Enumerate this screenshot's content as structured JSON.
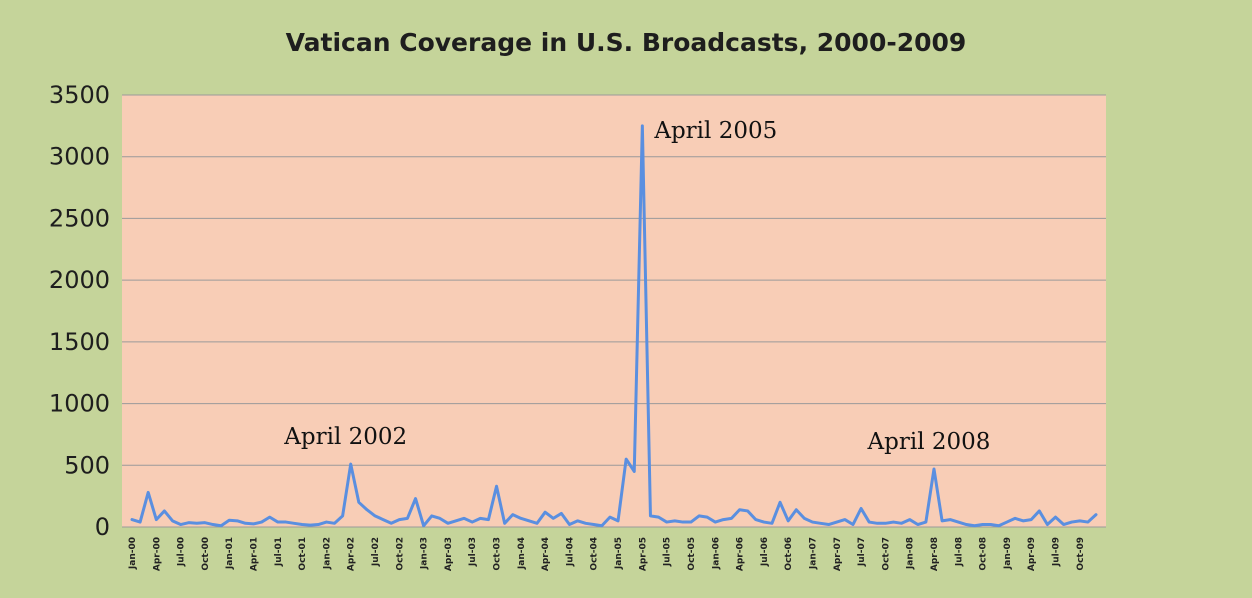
{
  "chart_data": {
    "type": "line",
    "title": "Vatican Coverage in U.S. Broadcasts, 2000-2009",
    "xlabel": "",
    "ylabel": "",
    "ylim": [
      0,
      3500
    ],
    "y_ticks": [
      0,
      500,
      1000,
      1500,
      2000,
      2500,
      3000,
      3500
    ],
    "grid": "horizontal",
    "legend": "none",
    "colors": {
      "line": "#5a8fe0",
      "plot_bg": "#f8cdb6",
      "outer_bg": "#c5d49a",
      "grid": "#9a9a9a"
    },
    "x": [
      "Jan-00",
      "Feb-00",
      "Mar-00",
      "Apr-00",
      "May-00",
      "Jun-00",
      "Jul-00",
      "Aug-00",
      "Sep-00",
      "Oct-00",
      "Nov-00",
      "Dec-00",
      "Jan-01",
      "Feb-01",
      "Mar-01",
      "Apr-01",
      "May-01",
      "Jun-01",
      "Jul-01",
      "Aug-01",
      "Sep-01",
      "Oct-01",
      "Nov-01",
      "Dec-01",
      "Jan-02",
      "Feb-02",
      "Mar-02",
      "Apr-02",
      "May-02",
      "Jun-02",
      "Jul-02",
      "Aug-02",
      "Sep-02",
      "Oct-02",
      "Nov-02",
      "Dec-02",
      "Jan-03",
      "Feb-03",
      "Mar-03",
      "Apr-03",
      "May-03",
      "Jun-03",
      "Jul-03",
      "Aug-03",
      "Sep-03",
      "Oct-03",
      "Nov-03",
      "Dec-03",
      "Jan-04",
      "Feb-04",
      "Mar-04",
      "Apr-04",
      "May-04",
      "Jun-04",
      "Jul-04",
      "Aug-04",
      "Sep-04",
      "Oct-04",
      "Nov-04",
      "Dec-04",
      "Jan-05",
      "Feb-05",
      "Mar-05",
      "Apr-05",
      "May-05",
      "Jun-05",
      "Jul-05",
      "Aug-05",
      "Sep-05",
      "Oct-05",
      "Nov-05",
      "Dec-05",
      "Jan-06",
      "Feb-06",
      "Mar-06",
      "Apr-06",
      "May-06",
      "Jun-06",
      "Jul-06",
      "Aug-06",
      "Sep-06",
      "Oct-06",
      "Nov-06",
      "Dec-06",
      "Jan-07",
      "Feb-07",
      "Mar-07",
      "Apr-07",
      "May-07",
      "Jun-07",
      "Jul-07",
      "Aug-07",
      "Sep-07",
      "Oct-07",
      "Nov-07",
      "Dec-07",
      "Jan-08",
      "Feb-08",
      "Mar-08",
      "Apr-08",
      "May-08",
      "Jun-08",
      "Jul-08",
      "Aug-08",
      "Sep-08",
      "Oct-08",
      "Nov-08",
      "Dec-08",
      "Jan-09",
      "Feb-09",
      "Mar-09",
      "Apr-09",
      "May-09",
      "Jun-09",
      "Jul-09",
      "Aug-09",
      "Sep-09",
      "Oct-09",
      "Nov-09",
      "Dec-09"
    ],
    "x_tick_labels": [
      "Jan-00",
      "Apr-00",
      "Jul-00",
      "Oct-00",
      "Jan-01",
      "Apr-01",
      "Jul-01",
      "Oct-01",
      "Jan-02",
      "Apr-02",
      "Jul-02",
      "Oct-02",
      "Jan-03",
      "Apr-03",
      "Jul-03",
      "Oct-03",
      "Jan-04",
      "Apr-04",
      "Jul-04",
      "Oct-04",
      "Jan-05",
      "Apr-05",
      "Jul-05",
      "Oct-05",
      "Jan-06",
      "Apr-06",
      "Jul-06",
      "Oct-06",
      "Jan-07",
      "Apr-07",
      "Jul-07",
      "Oct-07",
      "Jan-08",
      "Apr-08",
      "Jul-08",
      "Oct-08",
      "Jan-09",
      "Apr-09",
      "Jul-09",
      "Oct-09"
    ],
    "series": [
      {
        "name": "",
        "values": [
          60,
          40,
          280,
          60,
          130,
          50,
          20,
          35,
          30,
          35,
          20,
          10,
          55,
          50,
          30,
          25,
          40,
          80,
          40,
          40,
          30,
          20,
          15,
          20,
          40,
          30,
          90,
          510,
          200,
          140,
          90,
          60,
          30,
          60,
          70,
          230,
          10,
          90,
          70,
          30,
          50,
          70,
          40,
          70,
          60,
          330,
          30,
          100,
          70,
          50,
          30,
          120,
          70,
          110,
          20,
          50,
          30,
          20,
          10,
          80,
          50,
          550,
          450,
          3250,
          90,
          80,
          40,
          50,
          40,
          40,
          90,
          80,
          40,
          60,
          70,
          140,
          130,
          60,
          40,
          30,
          200,
          50,
          140,
          70,
          40,
          30,
          20,
          40,
          60,
          20,
          150,
          40,
          30,
          30,
          40,
          30,
          60,
          20,
          40,
          470,
          50,
          60,
          40,
          20,
          10,
          20,
          20,
          10,
          40,
          70,
          50,
          60,
          130,
          20,
          80,
          20,
          40,
          50,
          40,
          100
        ]
      }
    ],
    "annotations": [
      {
        "text": "April 2002",
        "x": "Apr-02"
      },
      {
        "text": "April 2005",
        "x": "Apr-05"
      },
      {
        "text": "April 2008",
        "x": "Apr-08"
      }
    ]
  }
}
